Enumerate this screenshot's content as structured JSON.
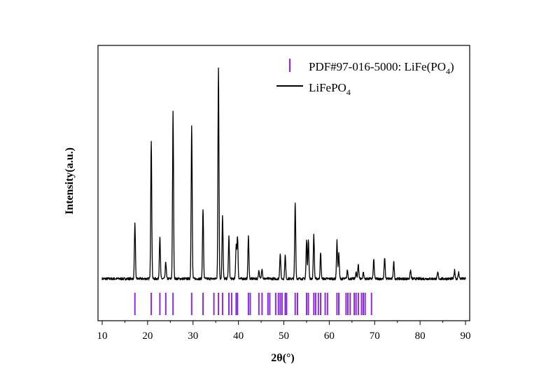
{
  "chart_data": {
    "type": "line",
    "xlabel": "2θ(°)",
    "ylabel": "Intensity(a.u.)",
    "xlim": [
      10,
      90
    ],
    "xticks": [
      "10",
      "20",
      "30",
      "40",
      "50",
      "60",
      "70",
      "80",
      "90"
    ],
    "y_scale": "arbitrary units (normalized 0–1)",
    "legend_position": "top-right",
    "colors": {
      "pattern": "#000000",
      "reference": "#8a2be2"
    },
    "series": [
      {
        "name": "LiFePO",
        "name_subscript": "4",
        "style": "line",
        "baseline": 0.03,
        "noise": 0.012,
        "peaks": [
          [
            17.2,
            0.26
          ],
          [
            20.8,
            0.65
          ],
          [
            22.7,
            0.2
          ],
          [
            24.0,
            0.08
          ],
          [
            25.6,
            0.79
          ],
          [
            29.7,
            0.73
          ],
          [
            32.2,
            0.33
          ],
          [
            35.6,
            1.0
          ],
          [
            36.5,
            0.3
          ],
          [
            37.9,
            0.2
          ],
          [
            39.5,
            0.16
          ],
          [
            39.8,
            0.2
          ],
          [
            42.2,
            0.2
          ],
          [
            44.5,
            0.04
          ],
          [
            45.2,
            0.05
          ],
          [
            49.2,
            0.12
          ],
          [
            50.3,
            0.11
          ],
          [
            52.5,
            0.36
          ],
          [
            55.0,
            0.18
          ],
          [
            55.4,
            0.19
          ],
          [
            56.6,
            0.21
          ],
          [
            58.1,
            0.12
          ],
          [
            61.7,
            0.18
          ],
          [
            62.1,
            0.12
          ],
          [
            64.0,
            0.04
          ],
          [
            65.9,
            0.03
          ],
          [
            66.4,
            0.07
          ],
          [
            67.5,
            0.03
          ],
          [
            69.8,
            0.09
          ],
          [
            72.2,
            0.1
          ],
          [
            74.2,
            0.08
          ],
          [
            77.9,
            0.04
          ],
          [
            83.9,
            0.03
          ],
          [
            87.6,
            0.04
          ],
          [
            88.5,
            0.03
          ]
        ]
      },
      {
        "name": "PDF#97-016-5000: LiFe(PO",
        "name_subscript": "4",
        "name_suffix": ")",
        "style": "reference-sticks",
        "positions": [
          17.2,
          20.8,
          22.7,
          24.0,
          25.6,
          29.7,
          32.2,
          34.6,
          35.6,
          36.5,
          37.9,
          38.5,
          39.5,
          39.8,
          42.2,
          42.6,
          44.5,
          45.2,
          46.5,
          46.9,
          48.2,
          48.8,
          49.2,
          49.6,
          50.3,
          50.6,
          52.5,
          53.0,
          55.0,
          55.4,
          56.6,
          57.0,
          57.6,
          58.1,
          59.1,
          59.6,
          61.7,
          62.1,
          63.7,
          64.1,
          64.6,
          65.5,
          65.9,
          66.4,
          67.1,
          67.5,
          67.9,
          69.3
        ]
      }
    ]
  }
}
